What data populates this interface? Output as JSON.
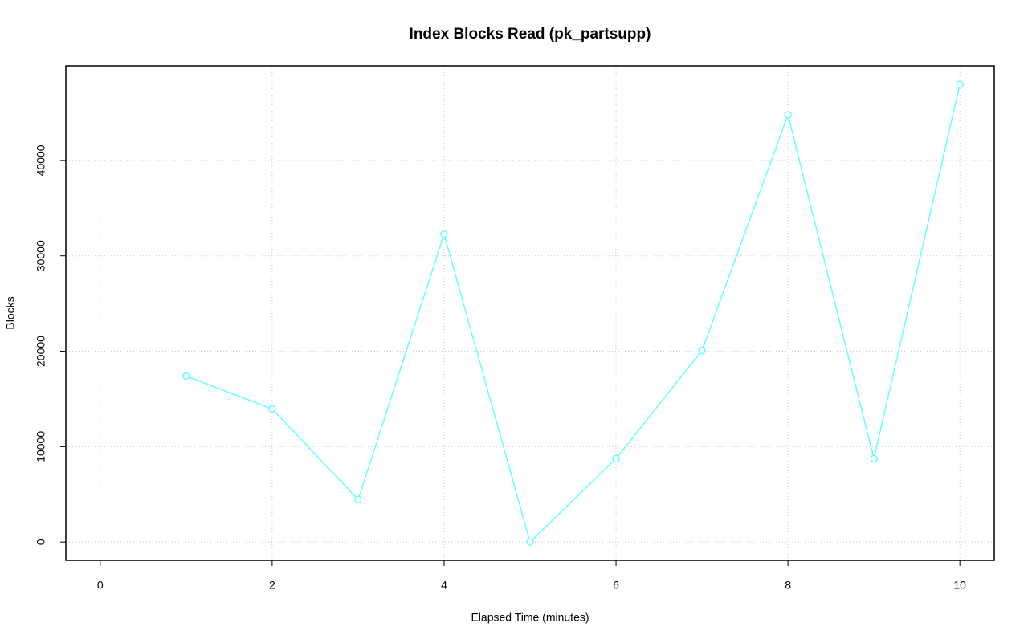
{
  "chart_data": {
    "type": "line",
    "title": "Index Blocks Read (pk_partsupp)",
    "x_label": "Elapsed Time (minutes)",
    "y_label": "Blocks",
    "x": [
      1,
      2,
      3,
      4,
      5,
      6,
      7,
      8,
      9,
      10
    ],
    "series": [
      {
        "color": "#66ffff",
        "values": [
          17400,
          13950,
          4450,
          32270,
          0,
          8740,
          20080,
          44790,
          8740,
          47980
        ]
      }
    ],
    "xlim": [
      -0.4,
      10.4
    ],
    "ylim": [
      -1920,
      49920
    ],
    "xticks": [
      0,
      2,
      4,
      6,
      8,
      10
    ],
    "yticks": [
      0,
      10000,
      20000,
      30000,
      40000
    ],
    "grid": true
  }
}
